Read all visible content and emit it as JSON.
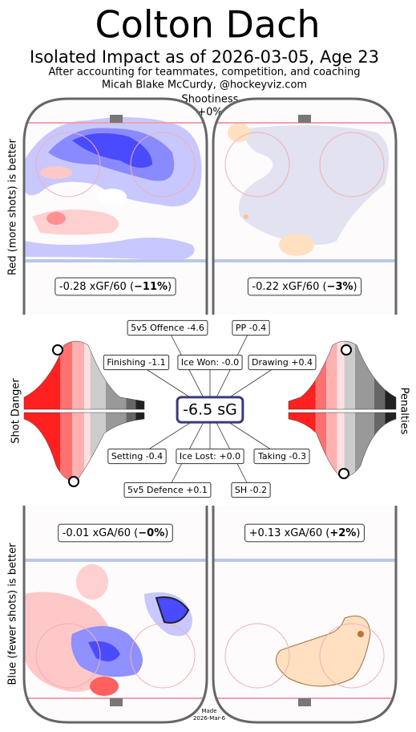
{
  "header": {
    "title": "Colton Dach",
    "subtitle": "Isolated Impact as of 2026-03-05, Age 23",
    "notes": [
      "After accounting for teammates, competition, and coaching",
      "Micah Blake McCurdy, @hockeyviz.com"
    ]
  },
  "shootiness": {
    "label": "Shootiness",
    "value": "+0%"
  },
  "side_labels": {
    "top": "Red (more shots) is better",
    "bottom": "Blue (fewer shots) is better",
    "left": "Shot Danger",
    "right": "Penalties"
  },
  "panels": [
    {
      "parts": [
        "-0.28 xGF/60 (",
        "−11%",
        ")"
      ]
    },
    {
      "parts": [
        "-0.22 xGF/60 (",
        "−3%",
        ")"
      ]
    },
    {
      "parts": [
        "-0.01 xGA/60 (",
        "−0%",
        ")"
      ]
    },
    {
      "parts": [
        "+0.13 xGA/60 (",
        "+2%",
        ")"
      ]
    }
  ],
  "center": "-6.5 sG",
  "boxes": [
    "5v5 Offence -4.6",
    "PP -0.4",
    "Finishing -1.1",
    "Ice Won: -0.0",
    "Drawing +0.4",
    "Setting -0.4",
    "Ice Lost: +0.0",
    "Taking -0.3",
    "5v5 Defence +0.1",
    "SH -0.2"
  ],
  "footer": [
    "Made",
    "2026-Mar-6"
  ]
}
